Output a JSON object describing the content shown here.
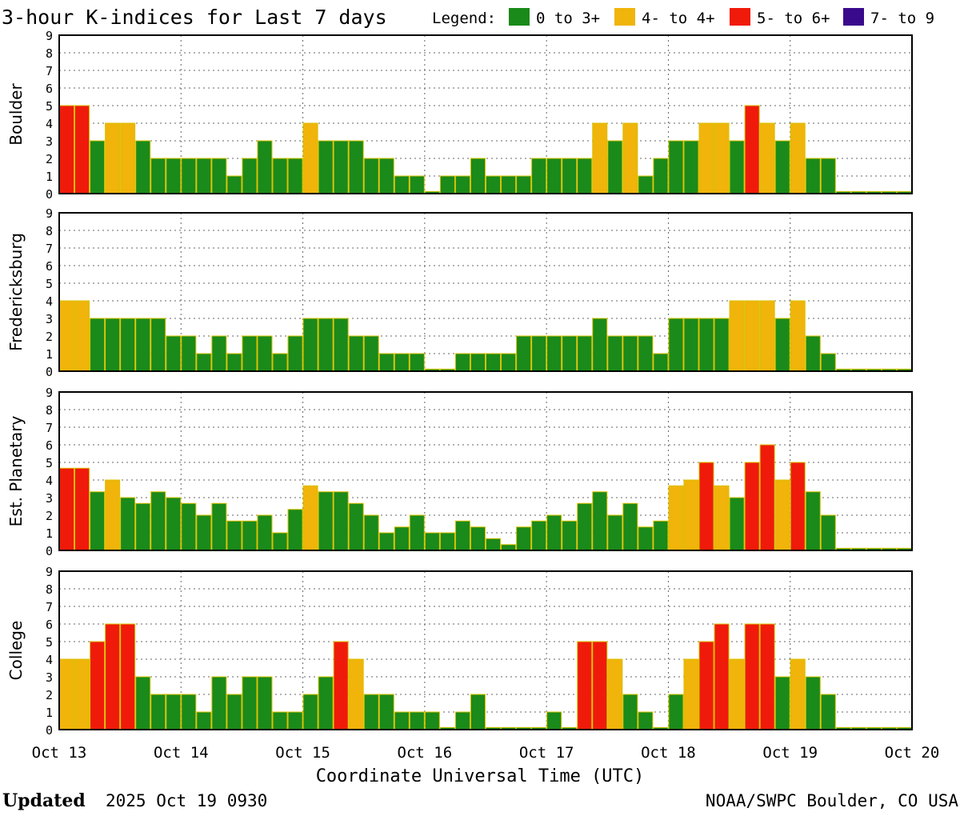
{
  "chart_data": {
    "type": "bar",
    "title": "3-hour K-indices for Last 7 days",
    "legend": {
      "label": "Legend:",
      "placement": "top-right",
      "items": [
        {
          "label": "0 to 3+",
          "color": "#1a8a1a"
        },
        {
          "label": "4- to 4+",
          "color": "#f0b40a"
        },
        {
          "label": "5- to 6+",
          "color": "#f01a0a"
        },
        {
          "label": "7- to 9",
          "color": "#3a0a8c"
        }
      ]
    },
    "xlabel": "Coordinate Universal Time (UTC)",
    "x_ticks": [
      "Oct 13",
      "Oct 14",
      "Oct 15",
      "Oct 16",
      "Oct 17",
      "Oct 18",
      "Oct 19",
      "Oct 20"
    ],
    "ylim": [
      0,
      9
    ],
    "y_ticks": [
      "0",
      "1",
      "2",
      "3",
      "4",
      "5",
      "6",
      "7",
      "8",
      "9"
    ],
    "grid": true,
    "bins_per_day": 8,
    "days": 7,
    "panels": [
      {
        "name": "Boulder",
        "values": [
          5,
          5,
          3,
          4,
          4,
          3,
          2,
          2,
          2,
          2,
          2,
          1,
          2,
          3,
          2,
          2,
          4,
          3,
          3,
          3,
          2,
          2,
          1,
          1,
          0,
          1,
          1,
          2,
          1,
          1,
          1,
          2,
          2,
          2,
          2,
          4,
          3,
          4,
          1,
          2,
          3,
          3,
          4,
          4,
          3,
          5,
          4,
          3,
          4,
          2,
          2,
          0,
          0,
          0,
          0,
          0
        ]
      },
      {
        "name": "Fredericksburg",
        "values": [
          4,
          4,
          3,
          3,
          3,
          3,
          3,
          2,
          2,
          1,
          2,
          1,
          2,
          2,
          1,
          2,
          3,
          3,
          3,
          2,
          2,
          1,
          1,
          1,
          0,
          0,
          1,
          1,
          1,
          1,
          2,
          2,
          2,
          2,
          2,
          3,
          2,
          2,
          2,
          1,
          3,
          3,
          3,
          3,
          4,
          4,
          4,
          3,
          4,
          2,
          1,
          0,
          0,
          0,
          0,
          0
        ]
      },
      {
        "name": "Est. Planetary",
        "values": [
          4.67,
          4.67,
          3.33,
          4,
          3,
          2.67,
          3.33,
          3,
          2.67,
          2,
          2.67,
          1.67,
          1.67,
          2,
          1,
          2.33,
          3.67,
          3.33,
          3.33,
          2.67,
          2,
          1,
          1.33,
          2,
          1,
          1,
          1.67,
          1.33,
          0.67,
          0.33,
          1.33,
          1.67,
          2,
          1.67,
          2.67,
          3.33,
          2,
          2.67,
          1.33,
          1.67,
          3.67,
          4,
          5,
          3.67,
          3,
          5,
          6,
          4,
          5,
          3.33,
          2,
          0,
          0,
          0,
          0,
          0
        ]
      },
      {
        "name": "College",
        "values": [
          4,
          4,
          5,
          6,
          6,
          3,
          2,
          2,
          2,
          1,
          3,
          2,
          3,
          3,
          1,
          1,
          2,
          3,
          5,
          4,
          2,
          2,
          1,
          1,
          1,
          0,
          1,
          2,
          0,
          0,
          0,
          0,
          1,
          0,
          5,
          5,
          4,
          2,
          1,
          0,
          2,
          4,
          5,
          6,
          4,
          6,
          6,
          3,
          4,
          3,
          2,
          0,
          0,
          0,
          0,
          0
        ]
      }
    ]
  },
  "footer": {
    "updated_label": "Updated",
    "updated_value": "2025 Oct 19 0930",
    "source": "NOAA/SWPC Boulder, CO USA"
  }
}
